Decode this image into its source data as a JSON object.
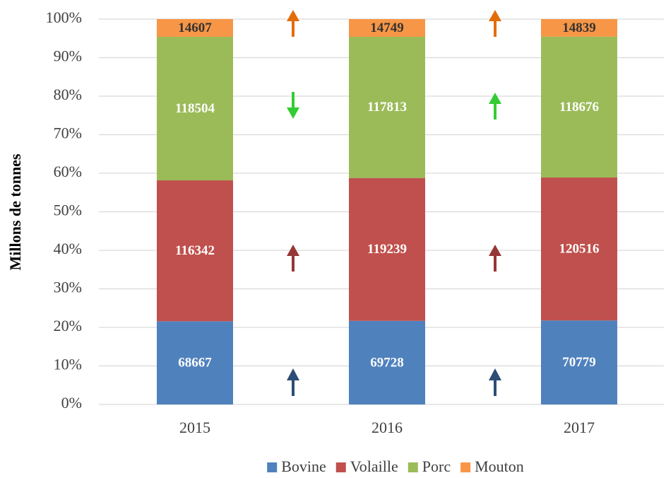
{
  "chart_data": {
    "type": "bar",
    "stacked": "percent",
    "y_label": "Millons de tonnes",
    "categories": [
      "2015",
      "2016",
      "2017"
    ],
    "series": [
      {
        "name": "Bovine",
        "color": "#4f81bd",
        "label_color": "#ffffff",
        "values": [
          68667,
          69728,
          70779
        ]
      },
      {
        "name": "Volaille",
        "color": "#c0504d",
        "label_color": "#ffffff",
        "values": [
          116342,
          119239,
          120516
        ]
      },
      {
        "name": "Porc",
        "color": "#9bbb59",
        "label_color": "#ffffff",
        "values": [
          118504,
          117813,
          118676
        ]
      },
      {
        "name": "Mouton",
        "color": "#f79646",
        "label_color": "#333333",
        "values": [
          14607,
          14749,
          14839
        ]
      }
    ],
    "ylim": [
      0,
      100
    ],
    "yticks": [
      {
        "value": 0,
        "label": "0%"
      },
      {
        "value": 10,
        "label": "10%"
      },
      {
        "value": 20,
        "label": "20%"
      },
      {
        "value": 30,
        "label": "30%"
      },
      {
        "value": 40,
        "label": "40%"
      },
      {
        "value": 50,
        "label": "50%"
      },
      {
        "value": 60,
        "label": "60%"
      },
      {
        "value": 70,
        "label": "70%"
      },
      {
        "value": 80,
        "label": "80%"
      },
      {
        "value": 90,
        "label": "90%"
      },
      {
        "value": 100,
        "label": "100%"
      }
    ],
    "grid": true,
    "legend": "bottom"
  }
}
